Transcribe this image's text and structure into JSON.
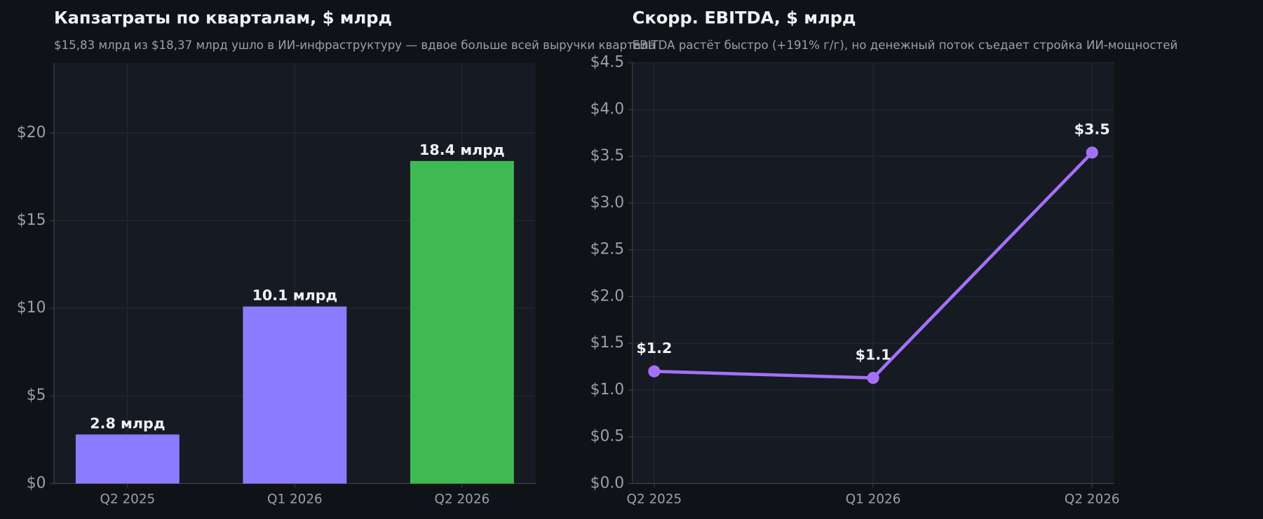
{
  "chart_data": [
    {
      "type": "bar",
      "title": "Капзатраты по кварталам, $ млрд",
      "subtitle": "$15,83 млрд из $18,37 млрд ушло в ИИ-инфраструктуру — вдвое больше всей выручки квартала",
      "categories": [
        "Q2 2025",
        "Q1 2026",
        "Q2 2026"
      ],
      "values": [
        2.8,
        10.1,
        18.4
      ],
      "value_labels": [
        "2.8 млрд",
        "10.1 млрд",
        "18.4 млрд"
      ],
      "colors": [
        "#8b7cff",
        "#8b7cff",
        "#3fba52"
      ],
      "ylim": [
        0,
        24
      ],
      "yticks": [
        {
          "value": 0,
          "label": "$0"
        },
        {
          "value": 5,
          "label": "$5"
        },
        {
          "value": 10,
          "label": "$10"
        },
        {
          "value": 15,
          "label": "$15"
        },
        {
          "value": 20,
          "label": "$20"
        }
      ],
      "grid": true
    },
    {
      "type": "line",
      "title": "Скорр. EBITDA, $ млрд",
      "subtitle": "EBITDA растёт быстро (+191% г/г), но денежный поток съедает стройка ИИ-мощностей",
      "categories": [
        "Q2 2025",
        "Q1 2026",
        "Q2 2026"
      ],
      "values": [
        1.2,
        1.13,
        3.54
      ],
      "value_labels": [
        "$1.2",
        "$1.1",
        "$3.5"
      ],
      "color": "#a371f7",
      "ylim": [
        0,
        4.5
      ],
      "yticks": [
        {
          "value": 0,
          "label": "$0.0"
        },
        {
          "value": 0.5,
          "label": "$0.5"
        },
        {
          "value": 1,
          "label": "$1.0"
        },
        {
          "value": 1.5,
          "label": "$1.5"
        },
        {
          "value": 2,
          "label": "$2.0"
        },
        {
          "value": 2.5,
          "label": "$2.5"
        },
        {
          "value": 3,
          "label": "$3.0"
        },
        {
          "value": 3.5,
          "label": "$3.5"
        },
        {
          "value": 4,
          "label": "$4.0"
        },
        {
          "value": 4.5,
          "label": "$4.5"
        }
      ],
      "grid": true
    }
  ]
}
